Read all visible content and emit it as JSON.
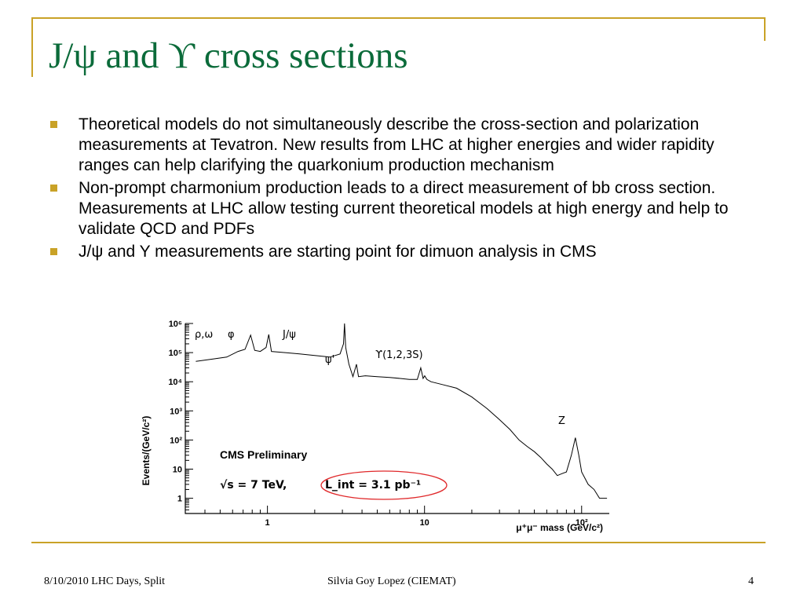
{
  "slide": {
    "title": "J/ψ and ϒ cross sections",
    "bullets": [
      "Theoretical models do not simultaneously describe the cross-section and polarization measurements at Tevatron. New results from LHC at higher energies and wider rapidity ranges can help clarifying the quarkonium production mechanism",
      "Non-prompt charmonium production leads to a direct measurement of bb cross section. Measurements at LHC allow testing current theoretical models at high energy and help to validate QCD and PDFs",
      "J/ψ and Y measurements are starting point for dimuon analysis in CMS"
    ],
    "accent_color": "#c9a227",
    "title_color": "#0b6b3a"
  },
  "figure": {
    "ylabel": "Events/(GeV/c²)",
    "xlabel": "μ⁺μ⁻ mass (GeV/c²)",
    "y_tick_labels": [
      "10⁶",
      "10⁵",
      "10⁴",
      "10³",
      "10²",
      "10",
      "1"
    ],
    "x_tick_labels": [
      "1",
      "10",
      "10²"
    ],
    "peak_labels": [
      "ρ,ω",
      "φ",
      "J/ψ",
      "ψ'",
      "ϒ(1,2,3S)",
      "Z"
    ],
    "legend_experiment": "CMS Preliminary",
    "legend_sqrt_s": "√s = 7 TeV,",
    "legend_lumi": "L_int = 3.1 pb⁻¹",
    "highlight_color": "#e0282a"
  },
  "chart_data": {
    "type": "line",
    "title": "",
    "xlabel": "μ⁺μ⁻ mass (GeV/c²)",
    "ylabel": "Events/(GeV/c²)",
    "x_scale": "log",
    "y_scale": "log",
    "xlim": [
      0.3,
      150
    ],
    "ylim": [
      0.3,
      1000000
    ],
    "grid": false,
    "series": [
      {
        "points": [
          [
            0.35,
            50000
          ],
          [
            0.45,
            60000
          ],
          [
            0.55,
            70000
          ],
          [
            0.65,
            110000
          ],
          [
            0.72,
            130000
          ],
          [
            0.782,
            400000
          ],
          [
            0.83,
            120000
          ],
          [
            0.9,
            110000
          ],
          [
            0.98,
            150000
          ],
          [
            1.019,
            420000
          ],
          [
            1.06,
            110000
          ],
          [
            1.3,
            100000
          ],
          [
            1.6,
            90000
          ],
          [
            2.0,
            80000
          ],
          [
            2.5,
            70000
          ],
          [
            2.9,
            90000
          ],
          [
            3.05,
            200000
          ],
          [
            3.097,
            1000000
          ],
          [
            3.15,
            150000
          ],
          [
            3.3,
            40000
          ],
          [
            3.5,
            15000
          ],
          [
            3.686,
            40000
          ],
          [
            3.8,
            15000
          ],
          [
            4.2,
            16000
          ],
          [
            5,
            15000
          ],
          [
            6,
            14000
          ],
          [
            7,
            13000
          ],
          [
            8,
            12000
          ],
          [
            9,
            12000
          ],
          [
            9.46,
            30000
          ],
          [
            9.8,
            13000
          ],
          [
            10.023,
            16000
          ],
          [
            10.355,
            12000
          ],
          [
            11,
            10000
          ],
          [
            13,
            8000
          ],
          [
            16,
            6000
          ],
          [
            20,
            3000
          ],
          [
            25,
            1200
          ],
          [
            30,
            500
          ],
          [
            35,
            230
          ],
          [
            40,
            100
          ],
          [
            45,
            60
          ],
          [
            50,
            40
          ],
          [
            55,
            25
          ],
          [
            60,
            15
          ],
          [
            65,
            10
          ],
          [
            70,
            6
          ],
          [
            75,
            7
          ],
          [
            80,
            8
          ],
          [
            86,
            30
          ],
          [
            91.2,
            120
          ],
          [
            96,
            30
          ],
          [
            100,
            8
          ],
          [
            110,
            3
          ],
          [
            120,
            2
          ],
          [
            130,
            1
          ],
          [
            145,
            1
          ]
        ]
      }
    ],
    "annotations": [
      "ρ,ω",
      "φ",
      "J/ψ",
      "ψ'",
      "ϒ(1,2,3S)",
      "Z",
      "CMS Preliminary",
      "√s = 7 TeV,",
      "L_int = 3.1 pb⁻¹"
    ]
  },
  "footer": {
    "left": "8/10/2010 LHC Days, Split",
    "center": "Silvia Goy Lopez (CIEMAT)",
    "right": "4"
  }
}
